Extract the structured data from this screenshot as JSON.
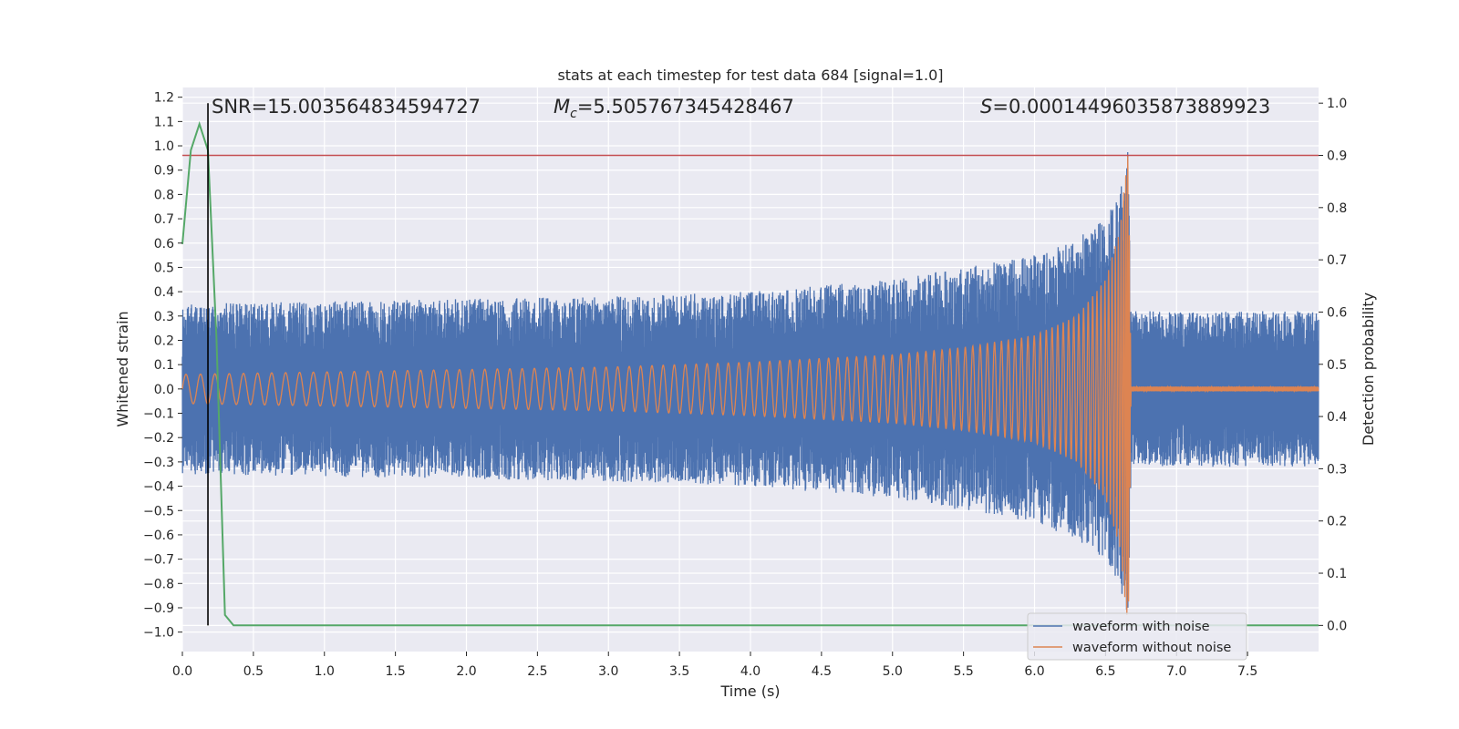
{
  "chart_data": {
    "type": "line",
    "title": "stats at each timestep for test data 684 [signal=1.0]",
    "xlabel": "Time (s)",
    "ylabel": "Whitened strain",
    "ylabel_right": "Detection probability",
    "xlim": [
      0,
      8
    ],
    "ylim": [
      -1.08,
      1.24
    ],
    "ylim_right": [
      -0.05,
      1.03
    ],
    "x_ticks": [
      0.0,
      0.5,
      1.0,
      1.5,
      2.0,
      2.5,
      3.0,
      3.5,
      4.0,
      4.5,
      5.0,
      5.5,
      6.0,
      6.5,
      7.0,
      7.5
    ],
    "y_ticks": [
      -1.0,
      -0.9,
      -0.8,
      -0.7,
      -0.6,
      -0.5,
      -0.4,
      -0.3,
      -0.2,
      -0.1,
      0.0,
      0.1,
      0.2,
      0.3,
      0.4,
      0.5,
      0.6,
      0.7,
      0.8,
      0.9,
      1.0,
      1.1,
      1.2
    ],
    "y_ticks_right": [
      0.0,
      0.1,
      0.2,
      0.3,
      0.4,
      0.5,
      0.6,
      0.7,
      0.8,
      0.9,
      1.0
    ],
    "grid": true,
    "legend_position": "lower-right",
    "annotations": {
      "snr": "SNR=15.003564834594727",
      "mc_symbol": "M",
      "mc_sub": "c",
      "mc_value": "=5.505767345428467",
      "s_symbol": "S",
      "s_value": "=0.00014496035873889923"
    },
    "series": [
      {
        "name": "waveform with noise",
        "color": "#4c72b0",
        "envelope": {
          "x": [
            0.0,
            1.0,
            2.0,
            3.0,
            4.0,
            5.0,
            5.5,
            6.0,
            6.3,
            6.5,
            6.6,
            6.66,
            6.68,
            8.0
          ],
          "amplitude": [
            0.35,
            0.36,
            0.37,
            0.38,
            0.4,
            0.45,
            0.5,
            0.55,
            0.62,
            0.7,
            0.8,
            1.0,
            0.32,
            0.32
          ]
        }
      },
      {
        "name": "waveform without noise",
        "color": "#dd8452",
        "envelope": {
          "x": [
            0.0,
            1.0,
            2.0,
            3.0,
            4.0,
            5.0,
            5.5,
            6.0,
            6.3,
            6.5,
            6.6,
            6.66,
            6.68,
            8.0
          ],
          "amplitude": [
            0.06,
            0.07,
            0.08,
            0.09,
            0.11,
            0.14,
            0.17,
            0.22,
            0.3,
            0.45,
            0.65,
            1.0,
            0.01,
            0.01
          ]
        }
      }
    ],
    "probability": {
      "color": "#55a868",
      "x": [
        0.0,
        0.06,
        0.12,
        0.18,
        0.24,
        0.3,
        0.36,
        0.42,
        8.0
      ],
      "y": [
        0.73,
        0.91,
        0.96,
        0.91,
        0.55,
        0.02,
        0.0,
        0.0,
        0.0
      ]
    },
    "threshold": {
      "value": 0.9,
      "color": "#c44e52"
    },
    "marker_time": {
      "value": 0.18,
      "color": "#000000"
    }
  }
}
